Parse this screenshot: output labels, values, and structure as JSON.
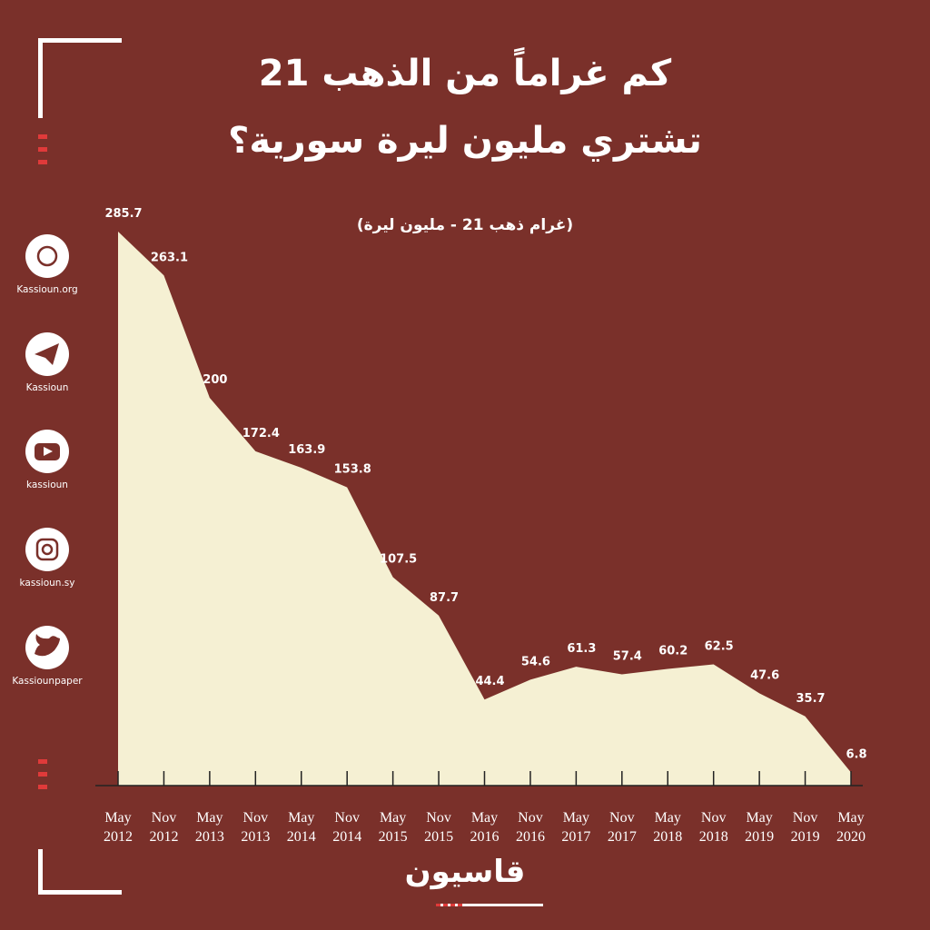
{
  "chart_data": {
    "type": "area",
    "title": "كم غراماً من الذهب 21",
    "subtitle": "تشتري مليون ليرة سورية؟",
    "note": "(غرام ذهب 21 - مليون ليرة)",
    "categories": [
      "May 2012",
      "Nov 2012",
      "May 2013",
      "Nov 2013",
      "May 2014",
      "Nov 2014",
      "May 2015",
      "Nov 2015",
      "May 2016",
      "Nov 2016",
      "May 2017",
      "Nov 2017",
      "May 2018",
      "Nov 2018",
      "May 2019",
      "Nov 2019",
      "May 2020"
    ],
    "values": [
      285.7,
      263.1,
      200,
      172.4,
      163.9,
      153.8,
      107.5,
      87.7,
      44.4,
      54.6,
      61.3,
      57.4,
      60.2,
      62.5,
      47.6,
      35.7,
      6.8
    ],
    "color": "#f5f0d3"
  },
  "sidebar": [
    "Kassioun.org",
    "Kassioun",
    "kassioun",
    "kassioun.sy",
    "Kassiounpaper"
  ],
  "brand": "قاسيون"
}
